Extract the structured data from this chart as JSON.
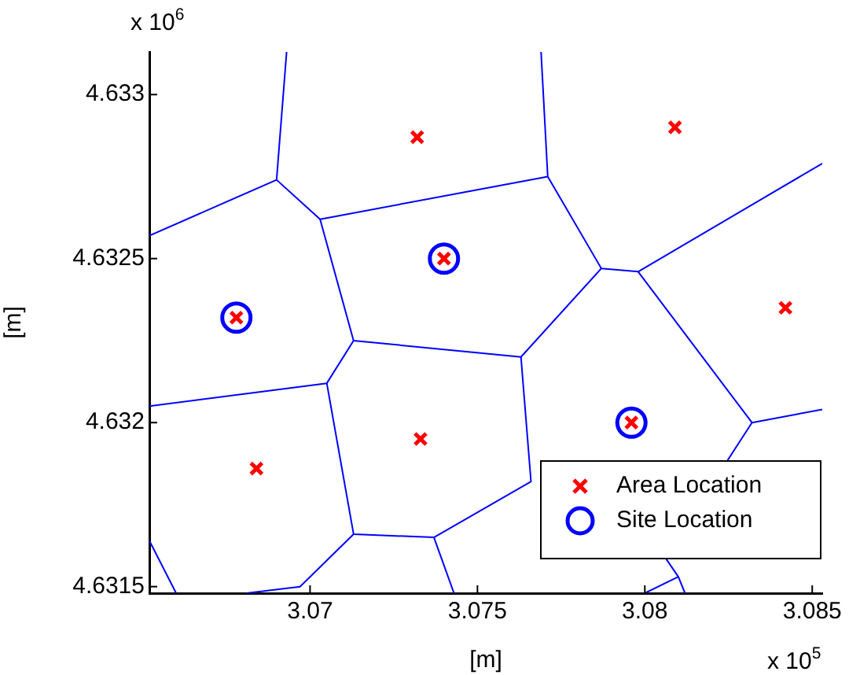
{
  "chart_data": {
    "type": "scatter",
    "xlabel": "[m]",
    "ylabel": "[m]",
    "annotations": [
      "x 10$^{5}$",
      "x 10$^{6}$"
    ],
    "xlim": [
      3.0652,
      3.0853
    ],
    "ylim": [
      4.63148,
      4.63313
    ],
    "xticks": [
      3.07,
      3.075,
      3.08,
      3.085
    ],
    "yticks": [
      4.6315,
      4.632,
      4.6325,
      4.633
    ],
    "grid": false,
    "legend": "bottom right",
    "series": [
      {
        "type": "line",
        "color": "#0000ff",
        "marker": "none",
        "line_style": "solid",
        "x": [
          3.0693,
          3.069,
          3.0652
        ],
        "values": [
          4.63313,
          4.63274,
          4.63257
        ]
      },
      {
        "type": "line",
        "color": "#0000ff",
        "marker": "none",
        "line_style": "solid",
        "x": [
          3.069,
          3.0703,
          3.0771,
          3.0769
        ],
        "values": [
          4.63274,
          4.63262,
          4.63275,
          4.63313
        ]
      },
      {
        "type": "line",
        "color": "#0000ff",
        "marker": "none",
        "line_style": "solid",
        "x": [
          3.0771,
          3.0787,
          3.0798,
          3.0853
        ],
        "values": [
          4.63275,
          4.63247,
          4.63246,
          4.63279
        ]
      },
      {
        "type": "line",
        "color": "#0000ff",
        "marker": "none",
        "line_style": "solid",
        "x": [
          3.0703,
          3.0713,
          3.0705,
          3.0652
        ],
        "values": [
          4.63262,
          4.63225,
          4.63212,
          4.63205
        ]
      },
      {
        "type": "line",
        "color": "#0000ff",
        "marker": "none",
        "line_style": "solid",
        "x": [
          3.0713,
          3.0763,
          3.0787
        ],
        "values": [
          4.63225,
          4.6322,
          4.63247
        ]
      },
      {
        "type": "line",
        "color": "#0000ff",
        "marker": "none",
        "line_style": "solid",
        "x": [
          3.0763,
          3.0766,
          3.0737,
          3.0713,
          3.0705
        ],
        "values": [
          4.6322,
          4.63182,
          4.63165,
          4.63166,
          4.63212
        ]
      },
      {
        "type": "line",
        "color": "#0000ff",
        "marker": "none",
        "line_style": "solid",
        "x": [
          3.0713,
          3.0697,
          3.0681
        ],
        "values": [
          4.63166,
          4.6315,
          4.63148
        ]
      },
      {
        "type": "line",
        "color": "#0000ff",
        "marker": "none",
        "line_style": "solid",
        "x": [
          3.0737,
          3.0743
        ],
        "values": [
          4.63165,
          4.63148
        ]
      },
      {
        "type": "line",
        "color": "#0000ff",
        "marker": "none",
        "line_style": "solid",
        "x": [
          3.0798,
          3.0832,
          3.0853
        ],
        "values": [
          4.63246,
          4.632,
          4.63204
        ]
      },
      {
        "type": "line",
        "color": "#0000ff",
        "marker": "none",
        "line_style": "solid",
        "x": [
          3.0832,
          3.0806,
          3.081,
          3.08
        ],
        "values": [
          4.632,
          4.63159,
          4.63153,
          4.63148
        ]
      },
      {
        "type": "line",
        "color": "#0000ff",
        "marker": "none",
        "line_style": "solid",
        "x": [
          3.081,
          3.0812
        ],
        "values": [
          4.63153,
          4.63148
        ]
      },
      {
        "type": "line",
        "color": "#0000ff",
        "marker": "none",
        "line_style": "solid",
        "x": [
          3.0652,
          3.066
        ],
        "values": [
          4.63164,
          4.63148
        ]
      },
      {
        "type": "scatter",
        "name": "Area Location",
        "color": "#ff0000",
        "marker": "cross",
        "x": [
          3.0732,
          3.0809,
          3.074,
          3.0678,
          3.0842,
          3.0733,
          3.0684,
          3.0796
        ],
        "values": [
          4.63287,
          4.6329,
          4.6325,
          4.63232,
          4.63235,
          4.63195,
          4.63186,
          4.632
        ]
      },
      {
        "type": "scatter",
        "name": "Site Location",
        "color": "#0000ff",
        "marker": "circle",
        "x": [
          3.0678,
          3.074,
          3.0796
        ],
        "values": [
          4.63232,
          4.6325,
          4.632
        ]
      }
    ]
  }
}
